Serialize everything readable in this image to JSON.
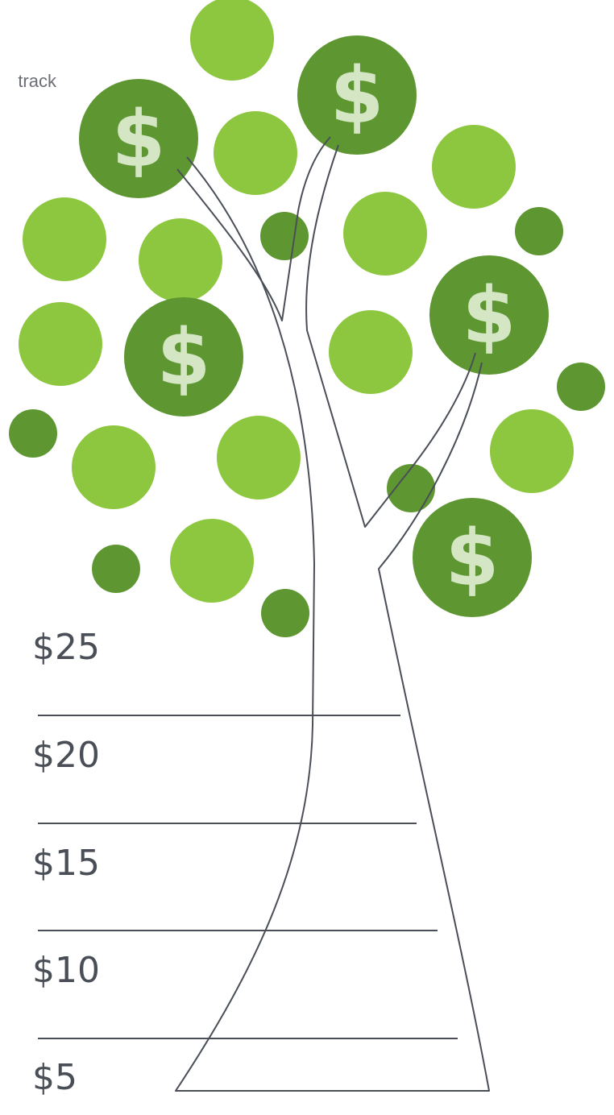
{
  "header": {
    "text": "track"
  },
  "coin_symbol": "$",
  "levels": [
    "$25",
    "$20",
    "$15",
    "$10",
    "$5"
  ]
}
